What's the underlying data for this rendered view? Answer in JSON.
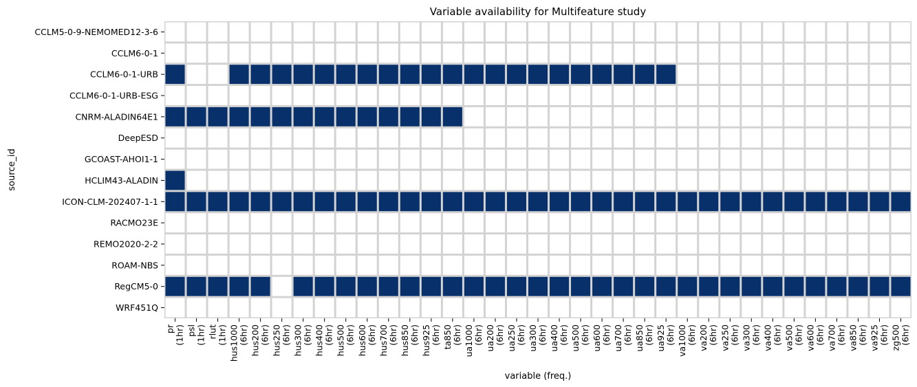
{
  "chart_data": {
    "type": "heatmap",
    "title": "Variable availability for Multifeature study",
    "xlabel": "variable (freq.)",
    "ylabel": "source_id",
    "colors": {
      "available": "#08306b",
      "missing": "#ffffff",
      "gridline": "#d3d3d3"
    },
    "y_categories": [
      "CCLM5-0-9-NEMOMED12-3-6",
      "CCLM6-0-1",
      "CCLM6-0-1-URB",
      "CCLM6-0-1-URB-ESG",
      "CNRM-ALADIN64E1",
      "DeepESD",
      "GCOAST-AHOI1-1",
      "HCLIM43-ALADIN",
      "ICON-CLM-202407-1-1",
      "RACMO23E",
      "REMO2020-2-2",
      "ROAM-NBS",
      "RegCM5-0",
      "WRF451Q"
    ],
    "x_categories": [
      [
        "pr",
        "(1hr)"
      ],
      [
        "psl",
        "(1hr)"
      ],
      [
        "rlut",
        "(1hr)"
      ],
      [
        "hus1000",
        "(6hr)"
      ],
      [
        "hus200",
        "(6hr)"
      ],
      [
        "hus250",
        "(6hr)"
      ],
      [
        "hus300",
        "(6hr)"
      ],
      [
        "hus400",
        "(6hr)"
      ],
      [
        "hus500",
        "(6hr)"
      ],
      [
        "hus600",
        "(6hr)"
      ],
      [
        "hus700",
        "(6hr)"
      ],
      [
        "hus850",
        "(6hr)"
      ],
      [
        "hus925",
        "(6hr)"
      ],
      [
        "ta850",
        "(6hr)"
      ],
      [
        "ua1000",
        "(6hr)"
      ],
      [
        "ua200",
        "(6hr)"
      ],
      [
        "ua250",
        "(6hr)"
      ],
      [
        "ua300",
        "(6hr)"
      ],
      [
        "ua400",
        "(6hr)"
      ],
      [
        "ua500",
        "(6hr)"
      ],
      [
        "ua600",
        "(6hr)"
      ],
      [
        "ua700",
        "(6hr)"
      ],
      [
        "ua850",
        "(6hr)"
      ],
      [
        "ua925",
        "(6hr)"
      ],
      [
        "va1000",
        "(6hr)"
      ],
      [
        "va200",
        "(6hr)"
      ],
      [
        "va250",
        "(6hr)"
      ],
      [
        "va300",
        "(6hr)"
      ],
      [
        "va400",
        "(6hr)"
      ],
      [
        "va500",
        "(6hr)"
      ],
      [
        "va600",
        "(6hr)"
      ],
      [
        "va700",
        "(6hr)"
      ],
      [
        "va850",
        "(6hr)"
      ],
      [
        "va925",
        "(6hr)"
      ],
      [
        "zg500",
        "(6hr)"
      ]
    ],
    "values": [
      [
        0,
        0,
        0,
        0,
        0,
        0,
        0,
        0,
        0,
        0,
        0,
        0,
        0,
        0,
        0,
        0,
        0,
        0,
        0,
        0,
        0,
        0,
        0,
        0,
        0,
        0,
        0,
        0,
        0,
        0,
        0,
        0,
        0,
        0,
        0
      ],
      [
        0,
        0,
        0,
        0,
        0,
        0,
        0,
        0,
        0,
        0,
        0,
        0,
        0,
        0,
        0,
        0,
        0,
        0,
        0,
        0,
        0,
        0,
        0,
        0,
        0,
        0,
        0,
        0,
        0,
        0,
        0,
        0,
        0,
        0,
        0
      ],
      [
        1,
        0,
        0,
        1,
        1,
        1,
        1,
        1,
        1,
        1,
        1,
        1,
        1,
        1,
        1,
        1,
        1,
        1,
        1,
        1,
        1,
        1,
        1,
        1,
        0,
        0,
        0,
        0,
        0,
        0,
        0,
        0,
        0,
        0,
        0
      ],
      [
        0,
        0,
        0,
        0,
        0,
        0,
        0,
        0,
        0,
        0,
        0,
        0,
        0,
        0,
        0,
        0,
        0,
        0,
        0,
        0,
        0,
        0,
        0,
        0,
        0,
        0,
        0,
        0,
        0,
        0,
        0,
        0,
        0,
        0,
        0
      ],
      [
        1,
        1,
        1,
        1,
        1,
        1,
        1,
        1,
        1,
        1,
        1,
        1,
        1,
        1,
        0,
        0,
        0,
        0,
        0,
        0,
        0,
        0,
        0,
        0,
        0,
        0,
        0,
        0,
        0,
        0,
        0,
        0,
        0,
        0,
        0
      ],
      [
        0,
        0,
        0,
        0,
        0,
        0,
        0,
        0,
        0,
        0,
        0,
        0,
        0,
        0,
        0,
        0,
        0,
        0,
        0,
        0,
        0,
        0,
        0,
        0,
        0,
        0,
        0,
        0,
        0,
        0,
        0,
        0,
        0,
        0,
        0
      ],
      [
        0,
        0,
        0,
        0,
        0,
        0,
        0,
        0,
        0,
        0,
        0,
        0,
        0,
        0,
        0,
        0,
        0,
        0,
        0,
        0,
        0,
        0,
        0,
        0,
        0,
        0,
        0,
        0,
        0,
        0,
        0,
        0,
        0,
        0,
        0
      ],
      [
        1,
        0,
        0,
        0,
        0,
        0,
        0,
        0,
        0,
        0,
        0,
        0,
        0,
        0,
        0,
        0,
        0,
        0,
        0,
        0,
        0,
        0,
        0,
        0,
        0,
        0,
        0,
        0,
        0,
        0,
        0,
        0,
        0,
        0,
        0
      ],
      [
        1,
        1,
        1,
        1,
        1,
        1,
        1,
        1,
        1,
        1,
        1,
        1,
        1,
        1,
        1,
        1,
        1,
        1,
        1,
        1,
        1,
        1,
        1,
        1,
        1,
        1,
        1,
        1,
        1,
        1,
        1,
        1,
        1,
        1,
        1
      ],
      [
        0,
        0,
        0,
        0,
        0,
        0,
        0,
        0,
        0,
        0,
        0,
        0,
        0,
        0,
        0,
        0,
        0,
        0,
        0,
        0,
        0,
        0,
        0,
        0,
        0,
        0,
        0,
        0,
        0,
        0,
        0,
        0,
        0,
        0,
        0
      ],
      [
        0,
        0,
        0,
        0,
        0,
        0,
        0,
        0,
        0,
        0,
        0,
        0,
        0,
        0,
        0,
        0,
        0,
        0,
        0,
        0,
        0,
        0,
        0,
        0,
        0,
        0,
        0,
        0,
        0,
        0,
        0,
        0,
        0,
        0,
        0
      ],
      [
        0,
        0,
        0,
        0,
        0,
        0,
        0,
        0,
        0,
        0,
        0,
        0,
        0,
        0,
        0,
        0,
        0,
        0,
        0,
        0,
        0,
        0,
        0,
        0,
        0,
        0,
        0,
        0,
        0,
        0,
        0,
        0,
        0,
        0,
        0
      ],
      [
        1,
        1,
        1,
        1,
        1,
        0,
        1,
        1,
        1,
        1,
        1,
        1,
        1,
        1,
        1,
        1,
        1,
        1,
        1,
        1,
        1,
        1,
        1,
        1,
        1,
        1,
        1,
        1,
        1,
        1,
        1,
        1,
        1,
        1,
        1
      ],
      [
        0,
        0,
        0,
        0,
        0,
        0,
        0,
        0,
        0,
        0,
        0,
        0,
        0,
        0,
        0,
        0,
        0,
        0,
        0,
        0,
        0,
        0,
        0,
        0,
        0,
        0,
        0,
        0,
        0,
        0,
        0,
        0,
        0,
        0,
        0
      ]
    ]
  }
}
